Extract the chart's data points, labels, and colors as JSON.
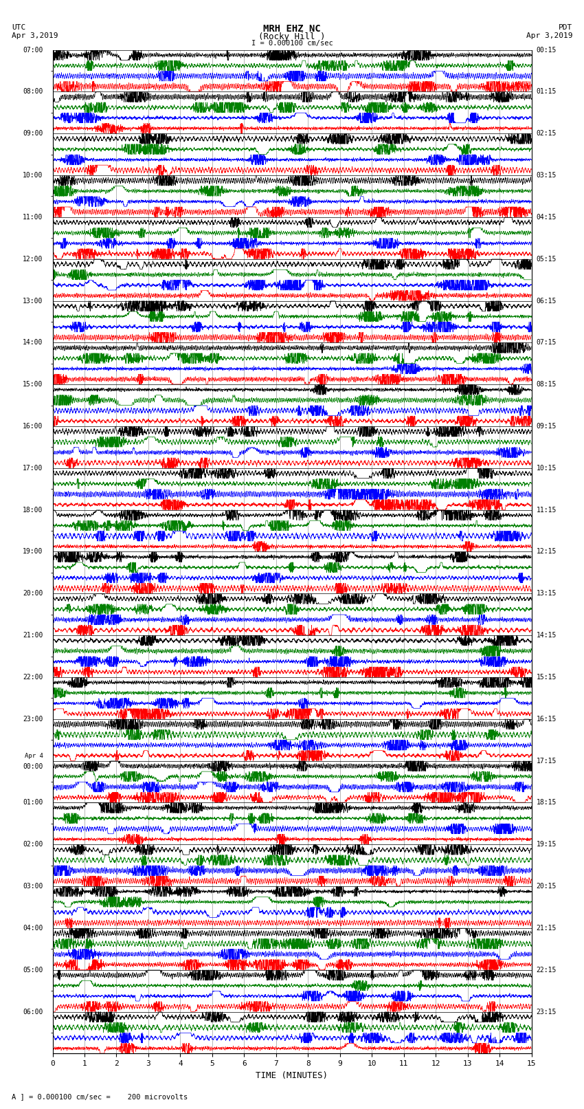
{
  "title_line1": "MRH EHZ NC",
  "title_line2": "(Rocky Hill )",
  "scale_label": "I = 0.000100 cm/sec",
  "left_header_line1": "UTC",
  "left_header_line2": "Apr 3,2019",
  "right_header_line1": "PDT",
  "right_header_line2": "Apr 3,2019",
  "xlabel": "TIME (MINUTES)",
  "bottom_note": "A ] = 0.000100 cm/sec =    200 microvolts",
  "utc_times": [
    "07:00",
    "08:00",
    "09:00",
    "10:00",
    "11:00",
    "12:00",
    "13:00",
    "14:00",
    "15:00",
    "16:00",
    "17:00",
    "18:00",
    "19:00",
    "20:00",
    "21:00",
    "22:00",
    "23:00",
    "00:00",
    "01:00",
    "02:00",
    "03:00",
    "04:00",
    "05:00",
    "06:00"
  ],
  "pdt_times": [
    "00:15",
    "01:15",
    "02:15",
    "03:15",
    "04:15",
    "05:15",
    "06:15",
    "07:15",
    "08:15",
    "09:15",
    "10:15",
    "11:15",
    "12:15",
    "13:15",
    "14:15",
    "15:15",
    "16:15",
    "17:15",
    "18:15",
    "19:15",
    "20:15",
    "21:15",
    "22:15",
    "23:15"
  ],
  "n_rows": 24,
  "n_minutes": 15,
  "bg_color": "#ffffff",
  "colors": [
    "red",
    "blue",
    "green",
    "black"
  ],
  "line_width": 0.5,
  "noise_seed": 42,
  "apr4_row": 17,
  "fig_width": 8.5,
  "fig_height": 16.13,
  "dpi": 100
}
